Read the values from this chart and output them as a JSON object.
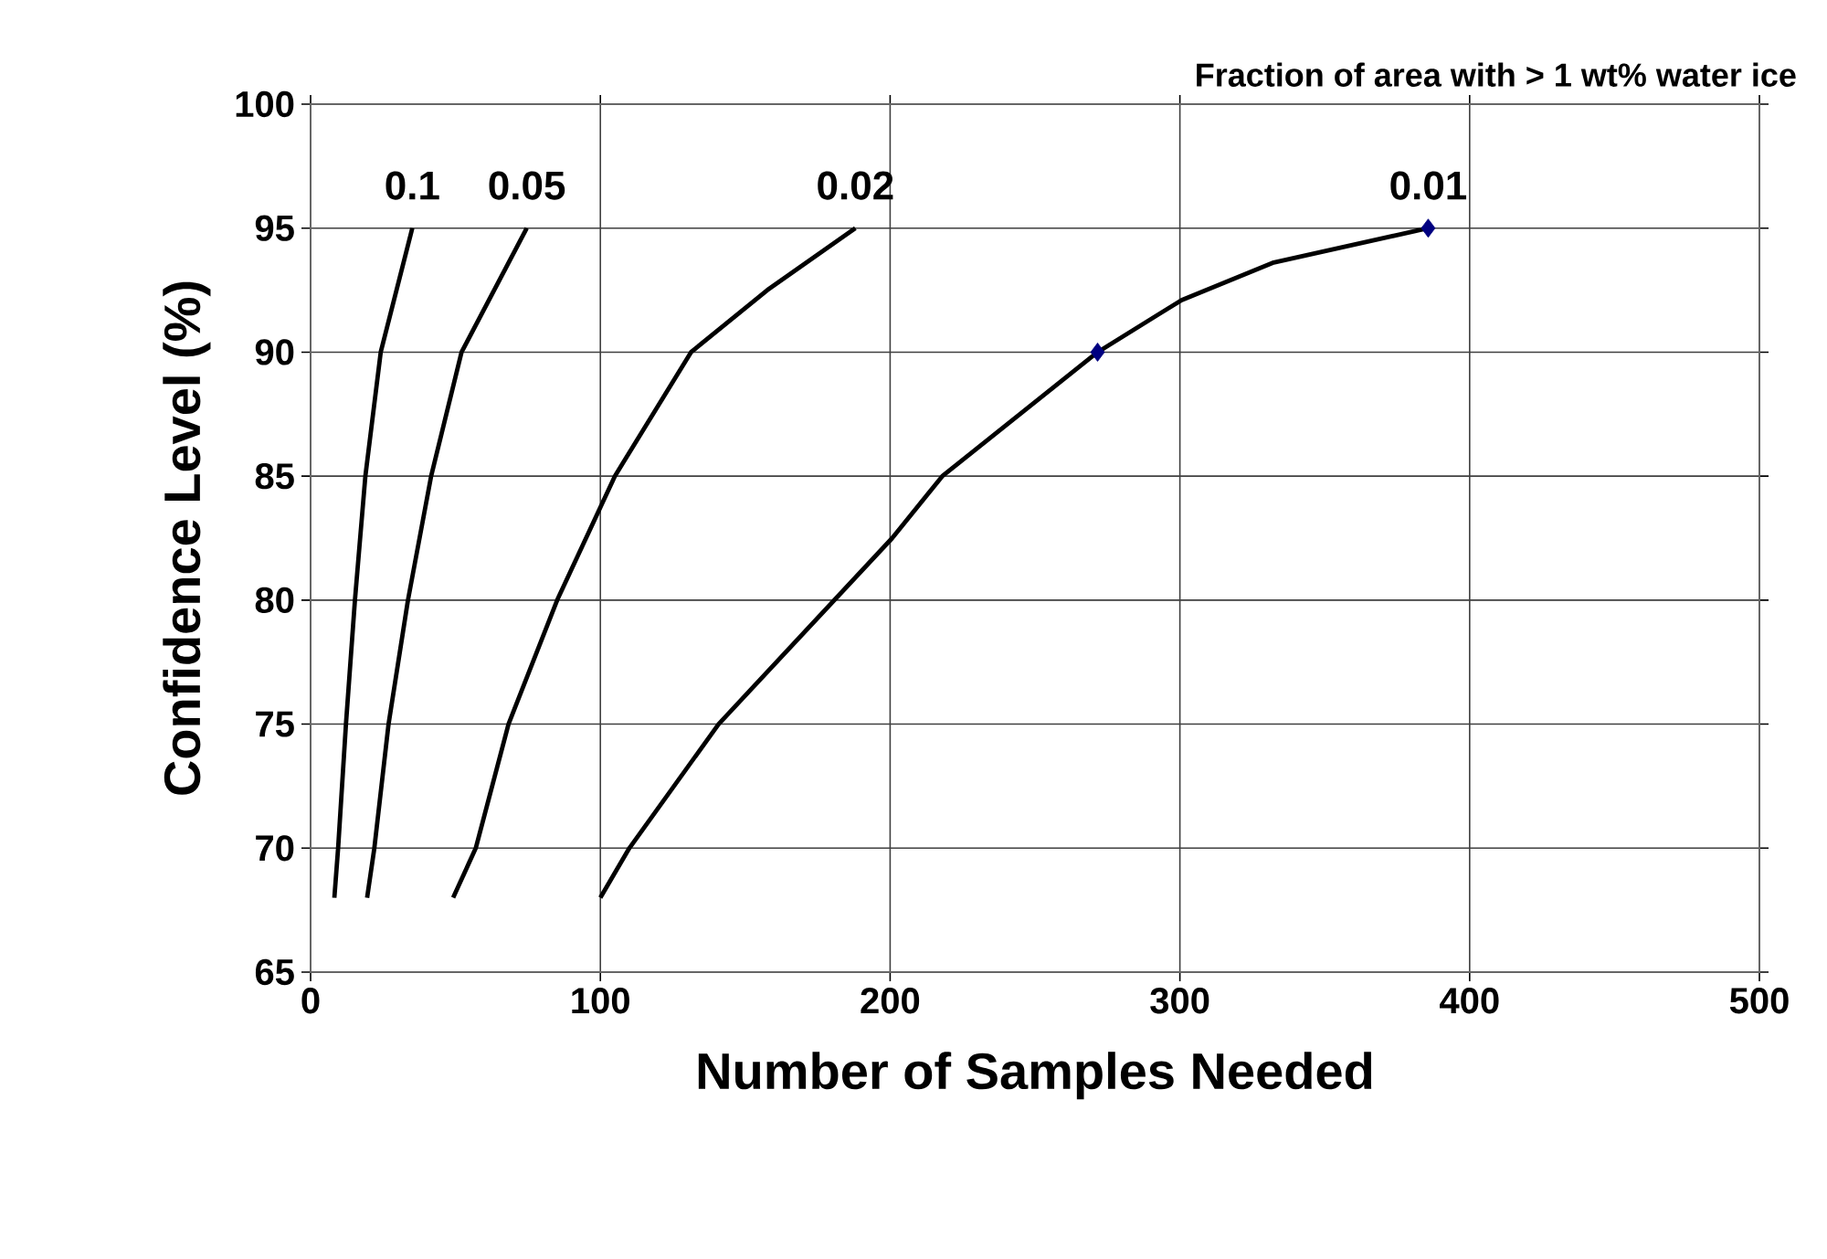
{
  "chart_data": {
    "type": "line",
    "title": "Fraction of area with > 1 wt% water ice",
    "xlabel": "Number of Samples Needed",
    "ylabel": "Confidence Level (%)",
    "xlim": [
      0,
      500
    ],
    "ylim": [
      65,
      100
    ],
    "xticks": [
      0,
      100,
      200,
      300,
      400,
      500
    ],
    "yticks": [
      65,
      70,
      75,
      80,
      85,
      90,
      95,
      100
    ],
    "grid": true,
    "legend": false,
    "marker": "none",
    "line_style": "solid",
    "series": [
      {
        "name": "0.1",
        "color": "#000000",
        "x": [
          8.2,
          9.5,
          12.2,
          15.3,
          18.9,
          24.2,
          35.1
        ],
        "values": [
          68,
          70,
          75,
          80,
          85,
          90,
          95
        ]
      },
      {
        "name": "0.05",
        "color": "#000000",
        "x": [
          19.5,
          22,
          26.9,
          33.6,
          41.6,
          52.1,
          74.6
        ],
        "values": [
          68,
          70,
          75,
          80,
          85,
          90,
          95
        ]
      },
      {
        "name": "0.02",
        "color": "#000000",
        "x": [
          49.2,
          57,
          68.3,
          85.1,
          105,
          131.3,
          157.6,
          188
        ],
        "values": [
          68,
          70,
          75,
          80,
          85,
          90,
          92.5,
          95
        ]
      },
      {
        "name": "0.01",
        "color": "#000000",
        "x": [
          100,
          110,
          140.8,
          200.7,
          218,
          271.6,
          300.6,
          332,
          385.7
        ],
        "values": [
          68,
          70,
          75,
          82.5,
          85,
          90,
          92.1,
          93.6,
          95
        ]
      },
      {
        "type": "scatter",
        "marker": "diamond",
        "color": "#000080",
        "x": [
          271.6,
          385.7
        ],
        "values": [
          90,
          95
        ]
      }
    ]
  }
}
